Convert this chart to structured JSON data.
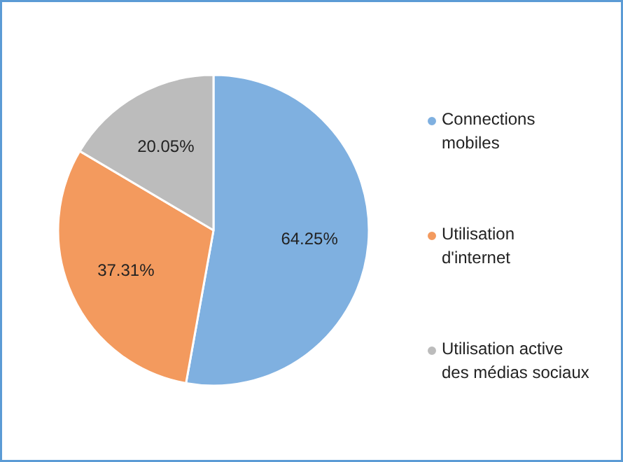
{
  "chart_data": {
    "type": "pie",
    "categories": [
      "Connections mobiles",
      "Utilisation d'internet",
      "Utilisation active des médias sociaux"
    ],
    "values": [
      64.25,
      37.31,
      20.05
    ],
    "value_labels": [
      "64.25%",
      "37.31%",
      "20.05%"
    ],
    "colors": [
      "#7fb0e0",
      "#f39a5e",
      "#bcbcbc"
    ],
    "legend": "right"
  }
}
